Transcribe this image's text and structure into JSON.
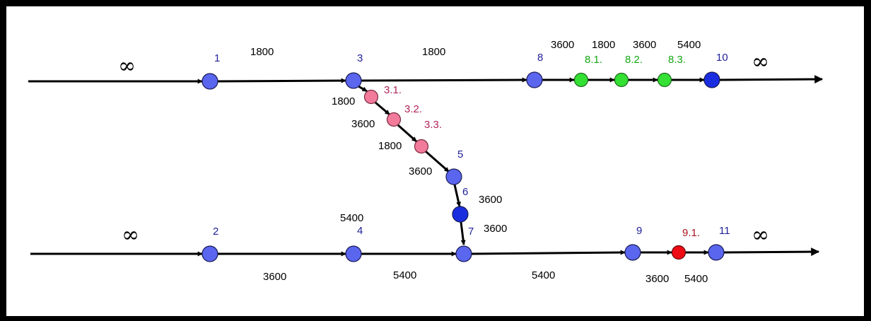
{
  "colors": {
    "line": "#000000",
    "blue_node": "#5a66ee",
    "dark_blue_node": "#1a2ee0",
    "pink_node": "#f27a9a",
    "green_node": "#33e033",
    "red_node": "#ee0b14",
    "blue_text": "#22229a",
    "pink_text": "#b0245a",
    "green_text": "#13a813",
    "red_text": "#a8141e",
    "black_text": "#000000"
  },
  "infinity": "∞",
  "nodes": {
    "n1": "1",
    "n2": "2",
    "n3": "3",
    "n4": "4",
    "n5": "5",
    "n6": "6",
    "n7": "7",
    "n8": "8",
    "n9": "9",
    "n10": "10",
    "n11": "11",
    "n31": "3.1.",
    "n32": "3.2.",
    "n33": "3.3.",
    "n81": "8.1.",
    "n82": "8.2.",
    "n83": "8.3.",
    "n91": "9.1."
  },
  "weights": {
    "top_1_3": "1800",
    "top_3_8": "1800",
    "top_8_81": "3600",
    "top_81_82": "1800",
    "top_82_83": "3600",
    "top_83_10": "5400",
    "diag_3_31": "1800",
    "diag_31_32": "3600",
    "diag_32_33": "1800",
    "diag_33_5": "3600",
    "diag_5_6": "3600",
    "diag_6_7": "3600",
    "bot_2_4": "3600",
    "bot_4_7": "5400",
    "bot_4_above": "5400",
    "bot_7_9": "5400",
    "bot_9_91": "3600",
    "bot_91_11": "5400"
  }
}
